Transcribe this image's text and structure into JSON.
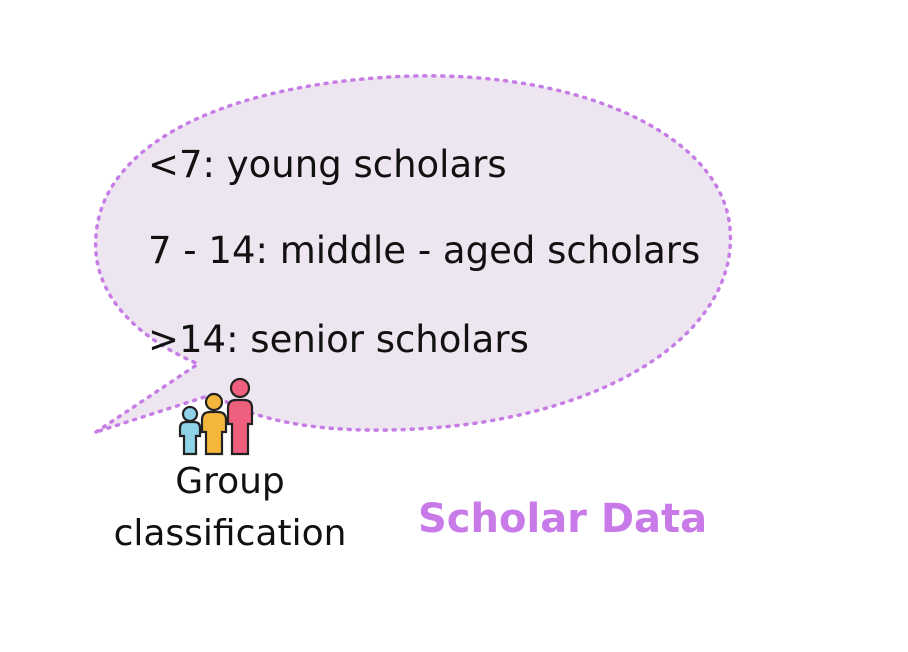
{
  "bubble": {
    "lines": [
      "<7: young scholars",
      "7 - 14: middle - aged scholars",
      ">14: senior scholars"
    ],
    "fill_color": "#ede5f0",
    "border_color": "#c77de6"
  },
  "group": {
    "label_line1": "Group",
    "label_line2": "classification",
    "icon": "family-icon",
    "icon_colors": {
      "child": "#8fd3e8",
      "middle": "#f5b73b",
      "senior": "#ef5f7e"
    }
  },
  "title": {
    "text": "Scholar Data",
    "color": "#c87ae8"
  }
}
